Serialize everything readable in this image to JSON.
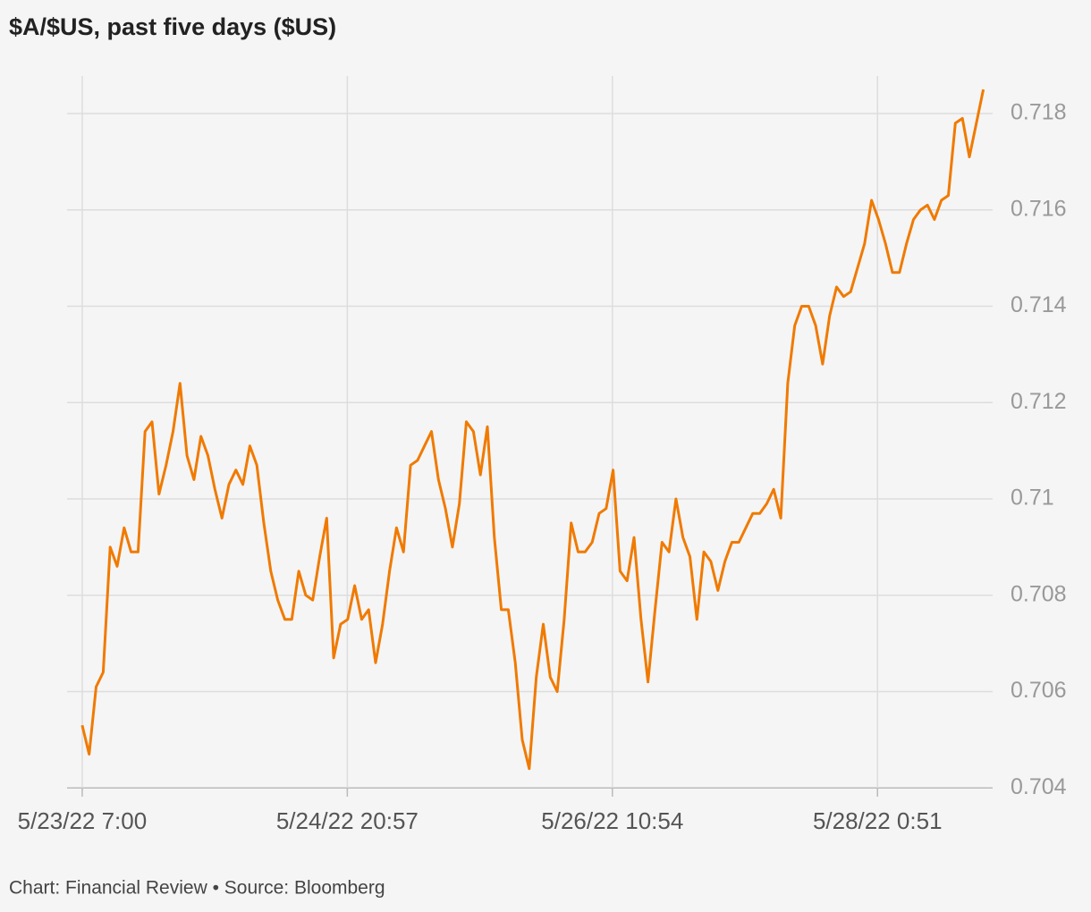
{
  "chart_data": {
    "type": "line",
    "title": "$A/$US, past five days ($US)",
    "footer": "Chart: Financial Review • Source: Bloomberg",
    "x": [
      "2022-05-23T07:00",
      "2022-05-23T08:00",
      "2022-05-23T09:00",
      "2022-05-23T10:00",
      "2022-05-23T11:00",
      "2022-05-23T12:00",
      "2022-05-23T13:00",
      "2022-05-23T14:00",
      "2022-05-23T15:00",
      "2022-05-23T16:00",
      "2022-05-23T17:00",
      "2022-05-23T18:00",
      "2022-05-23T19:00",
      "2022-05-23T20:00",
      "2022-05-23T21:00",
      "2022-05-23T22:00",
      "2022-05-23T23:00",
      "2022-05-24T00:00",
      "2022-05-24T01:00",
      "2022-05-24T02:00",
      "2022-05-24T03:00",
      "2022-05-24T04:00",
      "2022-05-24T05:00",
      "2022-05-24T06:00",
      "2022-05-24T07:00",
      "2022-05-24T08:00",
      "2022-05-24T09:00",
      "2022-05-24T10:00",
      "2022-05-24T11:00",
      "2022-05-24T12:00",
      "2022-05-24T13:00",
      "2022-05-24T14:00",
      "2022-05-24T15:00",
      "2022-05-24T16:00",
      "2022-05-24T17:00",
      "2022-05-24T18:00",
      "2022-05-24T19:00",
      "2022-05-24T20:00",
      "2022-05-24T21:00",
      "2022-05-24T22:00",
      "2022-05-24T23:00",
      "2022-05-25T00:00",
      "2022-05-25T01:00",
      "2022-05-25T02:00",
      "2022-05-25T03:00",
      "2022-05-25T04:00",
      "2022-05-25T05:00",
      "2022-05-25T06:00",
      "2022-05-25T07:00",
      "2022-05-25T08:00",
      "2022-05-25T09:00",
      "2022-05-25T10:00",
      "2022-05-25T11:00",
      "2022-05-25T12:00",
      "2022-05-25T13:00",
      "2022-05-25T14:00",
      "2022-05-25T15:00",
      "2022-05-25T16:00",
      "2022-05-25T17:00",
      "2022-05-25T18:00",
      "2022-05-25T19:00",
      "2022-05-25T20:00",
      "2022-05-25T21:00",
      "2022-05-25T22:00",
      "2022-05-25T23:00",
      "2022-05-26T00:00",
      "2022-05-26T01:00",
      "2022-05-26T02:00",
      "2022-05-26T03:00",
      "2022-05-26T04:00",
      "2022-05-26T05:00",
      "2022-05-26T06:00",
      "2022-05-26T07:00",
      "2022-05-26T08:00",
      "2022-05-26T09:00",
      "2022-05-26T10:00",
      "2022-05-26T11:00",
      "2022-05-26T12:00",
      "2022-05-26T13:00",
      "2022-05-26T14:00",
      "2022-05-26T15:00",
      "2022-05-26T16:00",
      "2022-05-26T17:00",
      "2022-05-26T18:00",
      "2022-05-26T19:00",
      "2022-05-26T20:00",
      "2022-05-26T21:00",
      "2022-05-26T22:00",
      "2022-05-26T23:00",
      "2022-05-27T00:00",
      "2022-05-27T01:00",
      "2022-05-27T02:00",
      "2022-05-27T03:00",
      "2022-05-27T04:00",
      "2022-05-27T05:00",
      "2022-05-27T06:00",
      "2022-05-27T07:00",
      "2022-05-27T08:00",
      "2022-05-27T09:00",
      "2022-05-27T10:00",
      "2022-05-27T11:00",
      "2022-05-27T12:00",
      "2022-05-27T13:00",
      "2022-05-27T14:00",
      "2022-05-27T15:00",
      "2022-05-27T16:00",
      "2022-05-27T17:00",
      "2022-05-27T18:00",
      "2022-05-27T19:00",
      "2022-05-27T20:00",
      "2022-05-27T21:00",
      "2022-05-27T22:00",
      "2022-05-27T23:00",
      "2022-05-28T00:00",
      "2022-05-28T01:00",
      "2022-05-28T02:00",
      "2022-05-28T03:00",
      "2022-05-28T04:00",
      "2022-05-28T05:00",
      "2022-05-28T06:00",
      "2022-05-28T07:00",
      "2022-05-28T08:00",
      "2022-05-28T09:00",
      "2022-05-28T10:00",
      "2022-05-28T11:00",
      "2022-05-28T12:00",
      "2022-05-28T13:00",
      "2022-05-28T14:00",
      "2022-05-28T15:00",
      "2022-05-28T16:00"
    ],
    "series": [
      {
        "name": "$A/$US",
        "color": "#f07a00",
        "values": [
          0.7053,
          0.7047,
          0.7061,
          0.7064,
          0.709,
          0.7086,
          0.7094,
          0.7089,
          0.7089,
          0.7114,
          0.7116,
          0.7101,
          0.7107,
          0.7114,
          0.7124,
          0.7109,
          0.7104,
          0.7113,
          0.7109,
          0.7102,
          0.7096,
          0.7103,
          0.7106,
          0.7103,
          0.7111,
          0.7107,
          0.7095,
          0.7085,
          0.7079,
          0.7075,
          0.7075,
          0.7085,
          0.708,
          0.7079,
          0.7088,
          0.7096,
          0.7067,
          0.7074,
          0.7075,
          0.7082,
          0.7075,
          0.7077,
          0.7066,
          0.7074,
          0.7085,
          0.7094,
          0.7089,
          0.7107,
          0.7108,
          0.7111,
          0.7114,
          0.7104,
          0.7098,
          0.709,
          0.7099,
          0.7116,
          0.7114,
          0.7105,
          0.7115,
          0.7092,
          0.7077,
          0.7077,
          0.7066,
          0.705,
          0.7044,
          0.7063,
          0.7074,
          0.7063,
          0.706,
          0.7075,
          0.7095,
          0.7089,
          0.7089,
          0.7091,
          0.7097,
          0.7098,
          0.7106,
          0.7085,
          0.7083,
          0.7092,
          0.7075,
          0.7062,
          0.7077,
          0.7091,
          0.7089,
          0.71,
          0.7092,
          0.7088,
          0.7075,
          0.7089,
          0.7087,
          0.7081,
          0.7087,
          0.7091,
          0.7091,
          0.7094,
          0.7097,
          0.7097,
          0.7099,
          0.7102,
          0.7096,
          0.7124,
          0.7136,
          0.714,
          0.714,
          0.7136,
          0.7128,
          0.7138,
          0.7144,
          0.7142,
          0.7143,
          0.7148,
          0.7153,
          0.7162,
          0.7158,
          0.7153,
          0.7147,
          0.7147,
          0.7153,
          0.7158,
          0.716,
          0.7161,
          0.7158,
          0.7162,
          0.7163,
          0.7178,
          0.7179,
          0.7171,
          0.7178,
          0.7185
        ]
      }
    ],
    "xlim": [
      "2022-05-23T04:50",
      "2022-05-28T17:20"
    ],
    "xticks": [
      {
        "value": "2022-05-23T07:00",
        "label": "5/23/22 7:00"
      },
      {
        "value": "2022-05-24T20:57",
        "label": "5/24/22 20:57"
      },
      {
        "value": "2022-05-26T10:54",
        "label": "5/26/22 10:54"
      },
      {
        "value": "2022-05-28T00:51",
        "label": "5/28/22 0:51"
      }
    ],
    "ylim": [
      0.70393,
      0.71878
    ],
    "yticks": [
      0.704,
      0.706,
      0.708,
      0.71,
      0.712,
      0.714,
      0.716,
      0.718
    ],
    "grid": true
  }
}
